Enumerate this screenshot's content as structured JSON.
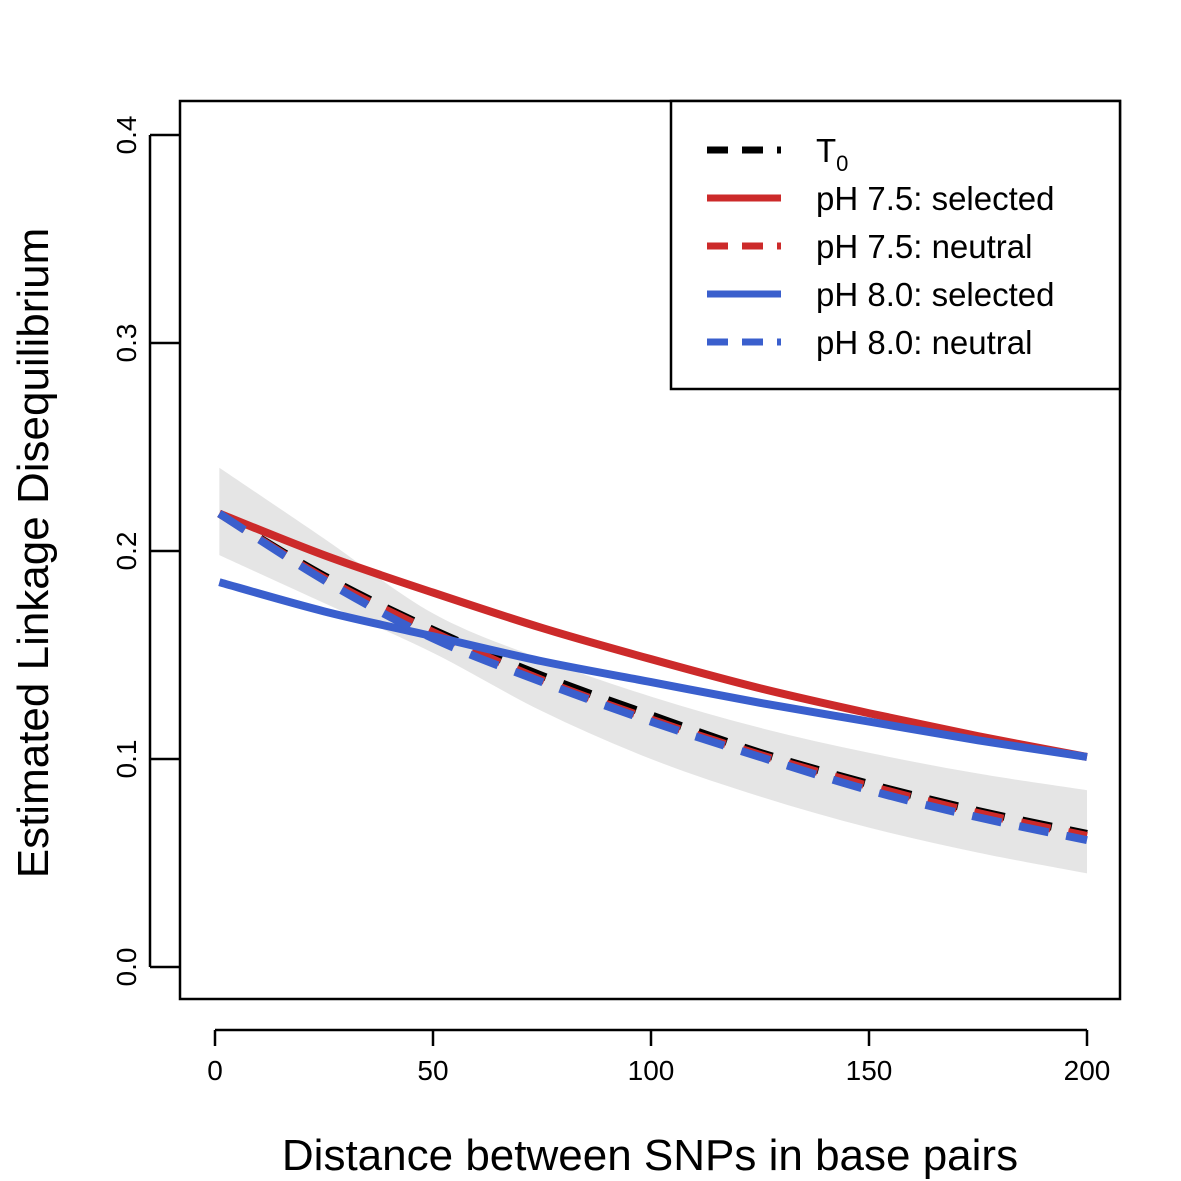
{
  "chart_data": {
    "type": "line",
    "title": "",
    "xlabel": "Distance between SNPs in base pairs",
    "ylabel": "Estimated Linkage Disequilibrium",
    "xlim": [
      0,
      200
    ],
    "ylim": [
      0,
      0.4
    ],
    "xticks": [
      0,
      50,
      100,
      150,
      200
    ],
    "xtick_labels": [
      "0",
      "50",
      "100",
      "150",
      "200"
    ],
    "yticks": [
      0.0,
      0.1,
      0.2,
      0.3,
      0.4
    ],
    "ytick_labels": [
      "0.0",
      "0.1",
      "0.2",
      "0.3",
      "0.4"
    ],
    "grid": false,
    "legend_position": "top-right",
    "confidence_band": {
      "color": "#e5e5e5",
      "x": [
        1,
        25,
        50,
        75,
        100,
        125,
        150,
        175,
        200
      ],
      "lower": [
        0.198,
        0.175,
        0.151,
        0.123,
        0.1,
        0.082,
        0.067,
        0.055,
        0.045
      ],
      "upper": [
        0.24,
        0.206,
        0.17,
        0.148,
        0.13,
        0.115,
        0.103,
        0.093,
        0.085
      ]
    },
    "series": [
      {
        "name": "T",
        "name_subscript": "0",
        "color": "#000000",
        "dash": "dashed",
        "x": [
          1,
          25,
          50,
          75,
          100,
          125,
          150,
          175,
          200
        ],
        "y": [
          0.218,
          0.188,
          0.162,
          0.14,
          0.121,
          0.103,
          0.088,
          0.075,
          0.064
        ]
      },
      {
        "name": "pH 7.5: selected",
        "color": "#cc2a2a",
        "dash": "solid",
        "x": [
          1,
          25,
          50,
          75,
          100,
          125,
          150,
          175,
          200
        ],
        "y": [
          0.218,
          0.198,
          0.18,
          0.163,
          0.148,
          0.134,
          0.122,
          0.111,
          0.101
        ]
      },
      {
        "name": "pH 7.5: neutral",
        "color": "#cc2a2a",
        "dash": "dashed",
        "x": [
          1,
          25,
          50,
          75,
          100,
          125,
          150,
          175,
          200
        ],
        "y": [
          0.218,
          0.187,
          0.161,
          0.138,
          0.119,
          0.102,
          0.087,
          0.074,
          0.063
        ]
      },
      {
        "name": "pH 8.0: selected",
        "color": "#3a5fcd",
        "dash": "solid",
        "x": [
          1,
          25,
          50,
          75,
          100,
          125,
          150,
          175,
          200
        ],
        "y": [
          0.185,
          0.171,
          0.159,
          0.147,
          0.137,
          0.127,
          0.118,
          0.109,
          0.101
        ]
      },
      {
        "name": "pH 8.0: neutral",
        "color": "#3a5fcd",
        "dash": "dashed",
        "x": [
          1,
          25,
          50,
          75,
          100,
          125,
          150,
          175,
          200
        ],
        "y": [
          0.218,
          0.186,
          0.158,
          0.137,
          0.118,
          0.101,
          0.085,
          0.072,
          0.061
        ]
      }
    ]
  }
}
